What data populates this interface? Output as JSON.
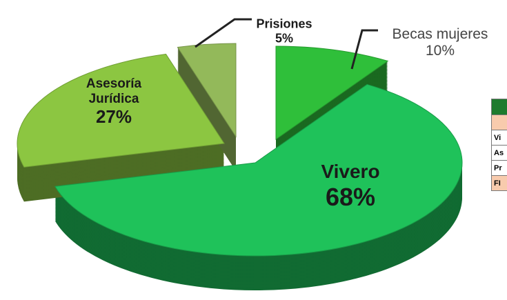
{
  "chart_data": {
    "type": "pie",
    "categories": [
      "Becas mujeres",
      "Vivero",
      "Asesoría Jurídica",
      "Prisiones"
    ],
    "values": [
      10,
      68,
      27,
      5
    ],
    "value_labels": [
      "10%",
      "68%",
      "27%",
      "5%"
    ],
    "colors": [
      "#2fbf3a",
      "#1fc25a",
      "#8cc641",
      "#93b95a"
    ]
  },
  "table": {
    "rows": [
      "Vi",
      "As",
      "Pr",
      "FI"
    ]
  }
}
